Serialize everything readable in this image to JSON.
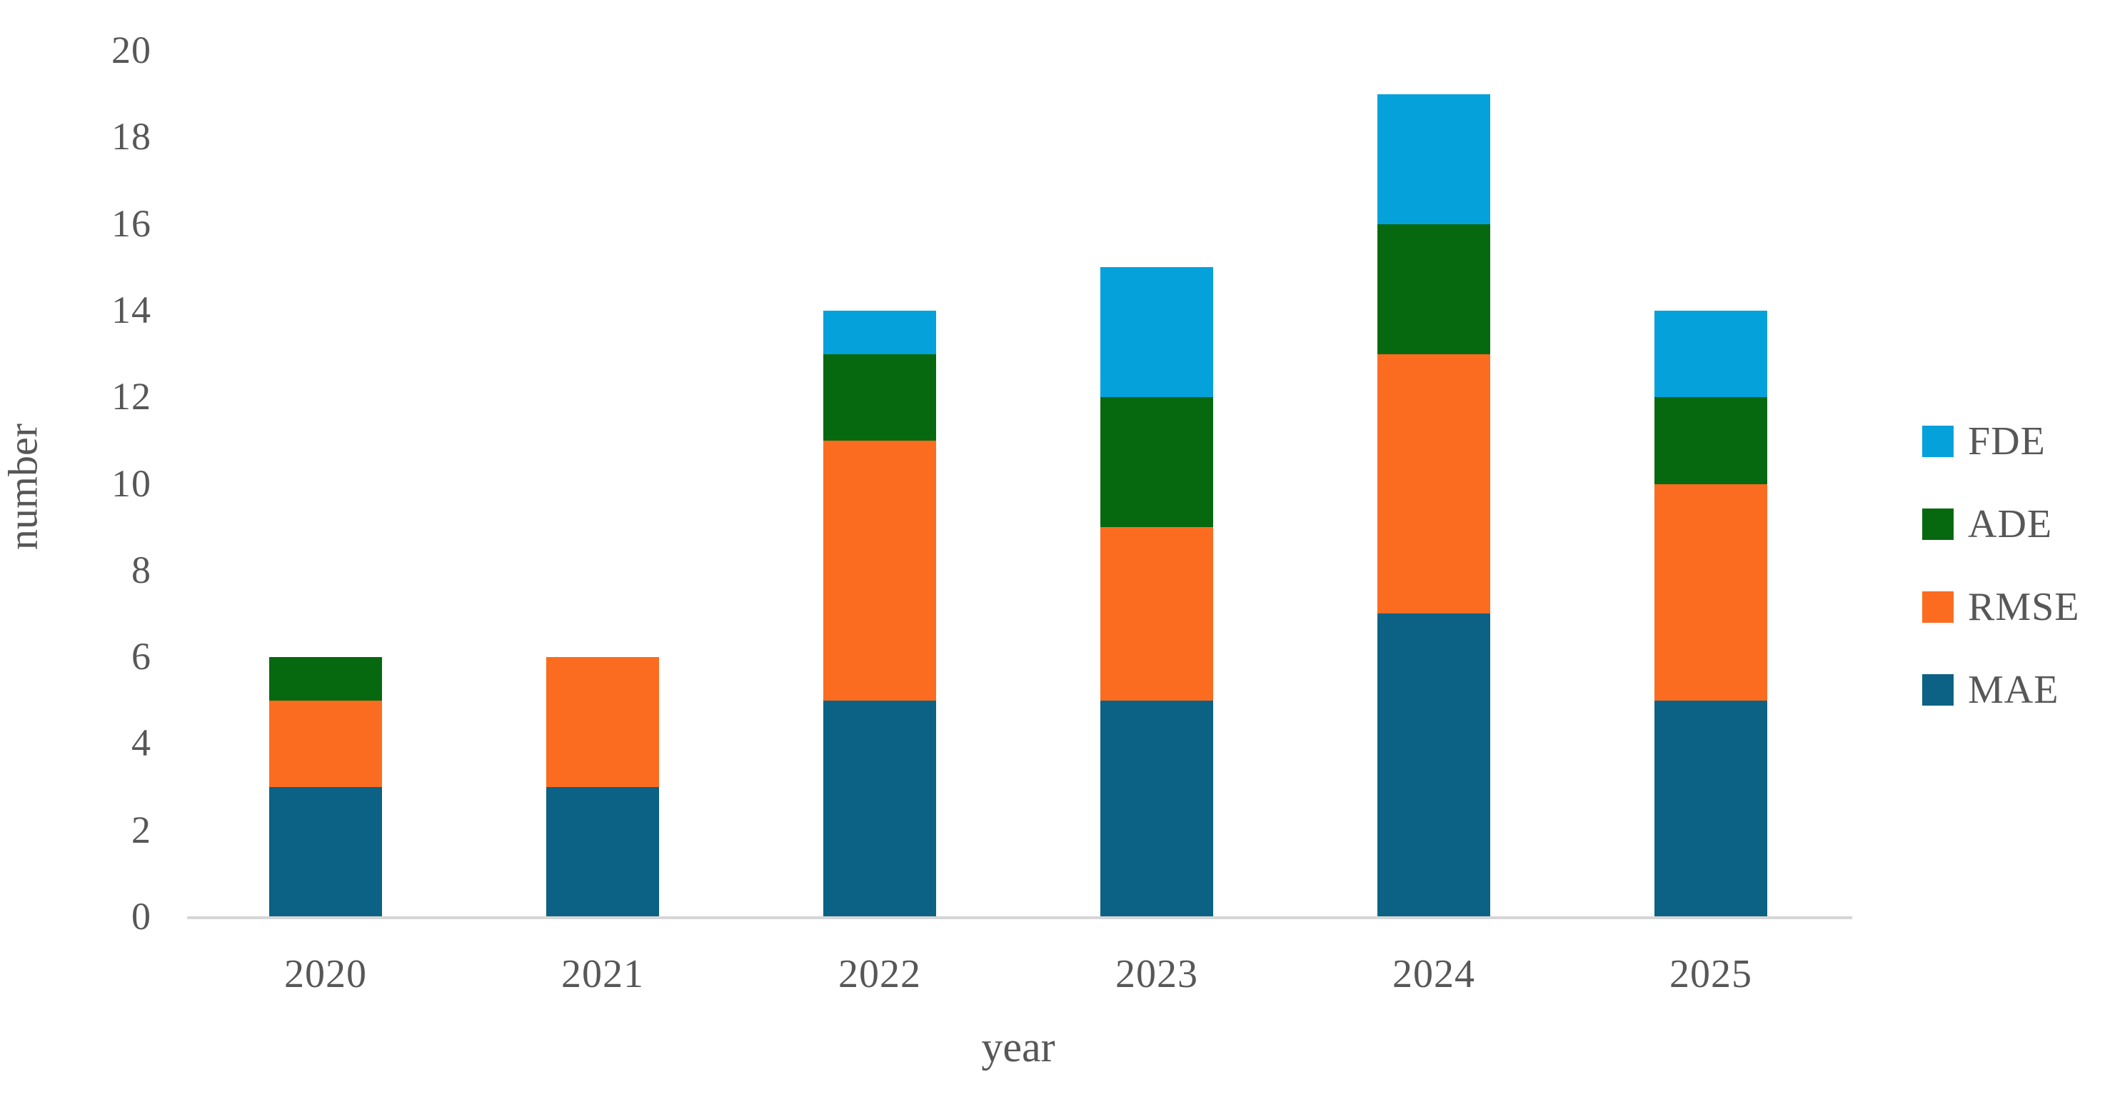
{
  "chart_data": {
    "type": "bar",
    "stacked": true,
    "title": "",
    "xlabel": "year",
    "ylabel": "number",
    "categories": [
      "2020",
      "2021",
      "2022",
      "2023",
      "2024",
      "2025"
    ],
    "series": [
      {
        "name": "MAE",
        "color": "#0B6284",
        "values": [
          3,
          3,
          5,
          5,
          7,
          5
        ]
      },
      {
        "name": "RMSE",
        "color": "#FB6C20",
        "values": [
          2,
          3,
          6,
          4,
          6,
          5
        ]
      },
      {
        "name": "ADE",
        "color": "#07690F",
        "values": [
          1,
          0,
          2,
          3,
          3,
          2
        ]
      },
      {
        "name": "FDE",
        "color": "#04A1DB",
        "values": [
          0,
          0,
          1,
          3,
          3,
          2
        ]
      }
    ],
    "stack_totals": [
      6,
      6,
      14,
      15,
      19,
      14
    ],
    "ylim": [
      0,
      20
    ],
    "ytick_step": 2,
    "ytick_labels": [
      "0",
      "2",
      "4",
      "6",
      "8",
      "10",
      "12",
      "14",
      "16",
      "18",
      "20"
    ],
    "grid": false,
    "legend": {
      "position": "right",
      "order_top_to_bottom": [
        "FDE",
        "ADE",
        "RMSE",
        "MAE"
      ]
    },
    "colors": {
      "axis_line": "#D6D6D6",
      "text": "#575757",
      "background": "#FFFFFF"
    }
  }
}
